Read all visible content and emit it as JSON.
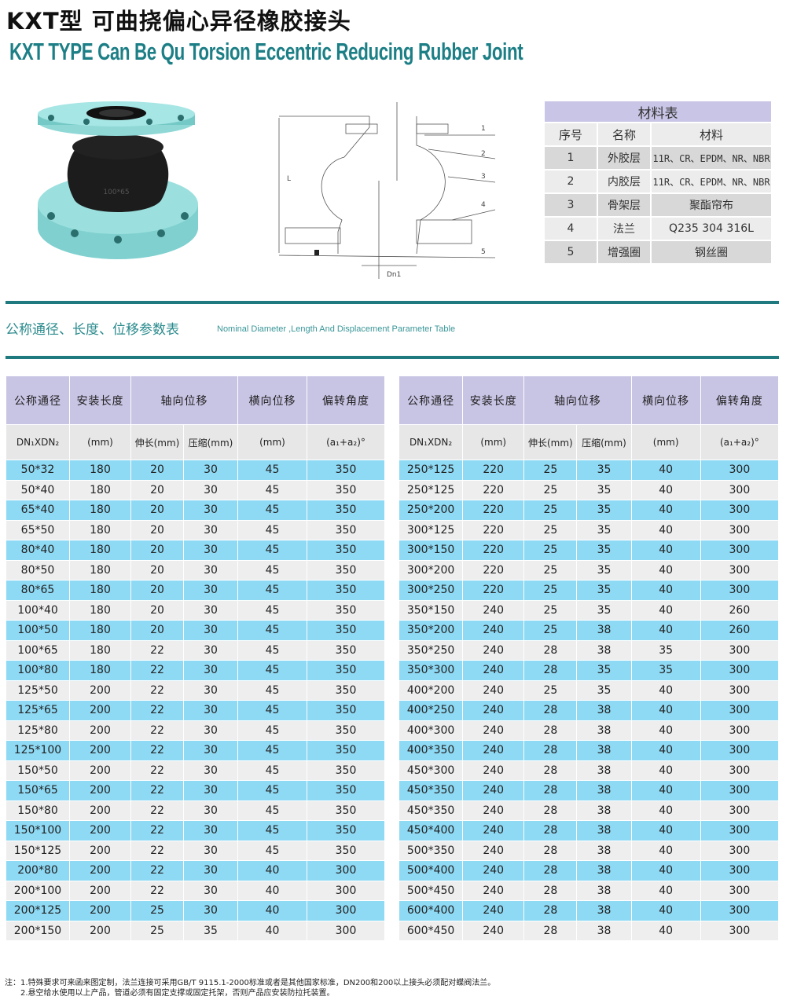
{
  "title_cn": "KXT型 可曲挠偏心异径橡胶接头",
  "title_en": "KXT TYPE Can Be Qu Torsion Eccentric Reducing Rubber Joint",
  "product_stamp": "100*65",
  "diagram": {
    "labels": [
      "1",
      "2",
      "3",
      "4",
      "5"
    ],
    "length_label": "L",
    "dn_label": "Dn1"
  },
  "materials": {
    "title": "材料表",
    "headers": [
      "序号",
      "名称",
      "材料"
    ],
    "rows": [
      [
        "1",
        "外胶层",
        "11R、CR、EPDM、NR、NBR"
      ],
      [
        "2",
        "内胶层",
        "11R、CR、EPDM、NR、NBR"
      ],
      [
        "3",
        "骨架层",
        "聚酯帘布"
      ],
      [
        "4",
        "法兰",
        "Q235 304 316L"
      ],
      [
        "5",
        "增强圈",
        "钢丝圈"
      ]
    ]
  },
  "section": {
    "title_cn": "公称通径、长度、位移参数表",
    "title_en": "Nominal Diameter ,Length And Displacement Parameter Table"
  },
  "colors": {
    "accent": "#1e7a7e",
    "header": "#c8c4e4",
    "row_highlight": "#8ed9f4",
    "row_plain": "#eeeeee"
  },
  "param_table": {
    "headers": [
      "公称通径",
      "安装长度",
      "轴向位移",
      "横向位移",
      "偏转角度"
    ],
    "subheaders": [
      "DN₁XDN₂",
      "(mm)",
      "伸长(mm)",
      "压缩(mm)",
      "(mm)",
      "(a₁+a₂)°"
    ],
    "left_rows": [
      [
        "50*32",
        "180",
        "20",
        "30",
        "45",
        "350"
      ],
      [
        "50*40",
        "180",
        "20",
        "30",
        "45",
        "350"
      ],
      [
        "65*40",
        "180",
        "20",
        "30",
        "45",
        "350"
      ],
      [
        "65*50",
        "180",
        "20",
        "30",
        "45",
        "350"
      ],
      [
        "80*40",
        "180",
        "20",
        "30",
        "45",
        "350"
      ],
      [
        "80*50",
        "180",
        "20",
        "30",
        "45",
        "350"
      ],
      [
        "80*65",
        "180",
        "20",
        "30",
        "45",
        "350"
      ],
      [
        "100*40",
        "180",
        "20",
        "30",
        "45",
        "350"
      ],
      [
        "100*50",
        "180",
        "20",
        "30",
        "45",
        "350"
      ],
      [
        "100*65",
        "180",
        "22",
        "30",
        "45",
        "350"
      ],
      [
        "100*80",
        "180",
        "22",
        "30",
        "45",
        "350"
      ],
      [
        "125*50",
        "200",
        "22",
        "30",
        "45",
        "350"
      ],
      [
        "125*65",
        "200",
        "22",
        "30",
        "45",
        "350"
      ],
      [
        "125*80",
        "200",
        "22",
        "30",
        "45",
        "350"
      ],
      [
        "125*100",
        "200",
        "22",
        "30",
        "45",
        "350"
      ],
      [
        "150*50",
        "200",
        "22",
        "30",
        "45",
        "350"
      ],
      [
        "150*65",
        "200",
        "22",
        "30",
        "45",
        "350"
      ],
      [
        "150*80",
        "200",
        "22",
        "30",
        "45",
        "350"
      ],
      [
        "150*100",
        "200",
        "22",
        "30",
        "45",
        "350"
      ],
      [
        "150*125",
        "200",
        "22",
        "30",
        "45",
        "350"
      ],
      [
        "200*80",
        "200",
        "22",
        "30",
        "40",
        "300"
      ],
      [
        "200*100",
        "200",
        "22",
        "30",
        "40",
        "300"
      ],
      [
        "200*125",
        "200",
        "25",
        "30",
        "40",
        "300"
      ],
      [
        "200*150",
        "200",
        "25",
        "35",
        "40",
        "300"
      ]
    ],
    "right_rows": [
      [
        "250*125",
        "220",
        "25",
        "35",
        "40",
        "300"
      ],
      [
        "250*125",
        "220",
        "25",
        "35",
        "40",
        "300"
      ],
      [
        "250*200",
        "220",
        "25",
        "35",
        "40",
        "300"
      ],
      [
        "300*125",
        "220",
        "25",
        "35",
        "40",
        "300"
      ],
      [
        "300*150",
        "220",
        "25",
        "35",
        "40",
        "300"
      ],
      [
        "300*200",
        "220",
        "25",
        "35",
        "40",
        "300"
      ],
      [
        "300*250",
        "220",
        "25",
        "35",
        "40",
        "300"
      ],
      [
        "350*150",
        "240",
        "25",
        "35",
        "40",
        "260"
      ],
      [
        "350*200",
        "240",
        "25",
        "38",
        "40",
        "260"
      ],
      [
        "350*250",
        "240",
        "28",
        "38",
        "35",
        "300"
      ],
      [
        "350*300",
        "240",
        "28",
        "35",
        "35",
        "300"
      ],
      [
        "400*200",
        "240",
        "25",
        "35",
        "40",
        "300"
      ],
      [
        "400*250",
        "240",
        "28",
        "38",
        "40",
        "300"
      ],
      [
        "400*300",
        "240",
        "28",
        "38",
        "40",
        "300"
      ],
      [
        "400*350",
        "240",
        "28",
        "38",
        "40",
        "300"
      ],
      [
        "450*300",
        "240",
        "28",
        "38",
        "40",
        "300"
      ],
      [
        "450*350",
        "240",
        "28",
        "38",
        "40",
        "300"
      ],
      [
        "450*350",
        "240",
        "28",
        "38",
        "40",
        "300"
      ],
      [
        "450*400",
        "240",
        "28",
        "38",
        "40",
        "300"
      ],
      [
        "500*350",
        "240",
        "28",
        "38",
        "40",
        "300"
      ],
      [
        "500*400",
        "240",
        "28",
        "38",
        "40",
        "300"
      ],
      [
        "500*450",
        "240",
        "28",
        "38",
        "40",
        "300"
      ],
      [
        "600*400",
        "240",
        "28",
        "38",
        "40",
        "300"
      ],
      [
        "600*450",
        "240",
        "28",
        "38",
        "40",
        "300"
      ]
    ]
  },
  "notes": [
    "注：1.特殊要求可来函来图定制，法兰连接可采用GB/T 9115.1-2000标准或者是其他国家标准，DN200和200以上接头必须配对蝶阀法兰。",
    "　　2.悬空给水使用以上产品，管道必须有固定支撑或固定托架，否则产品应安装防拉托装置。"
  ]
}
